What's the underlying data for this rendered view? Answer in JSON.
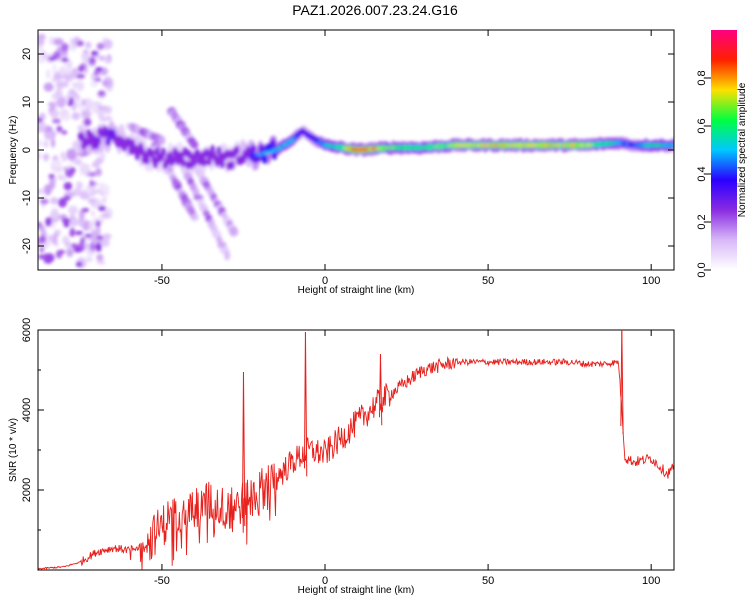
{
  "title": "PAZ1.2026.007.23.24.G16",
  "chart_data": [
    {
      "type": "heatmap",
      "title": "PAZ1.2026.007.23.24.G16",
      "xlabel": "Height of straight line (km)",
      "ylabel": "Frequency (Hz)",
      "xlim": [
        -88,
        107
      ],
      "ylim": [
        -25,
        25
      ],
      "xticks": [
        -50,
        0,
        50,
        100
      ],
      "yticks": [
        -20,
        -10,
        0,
        10,
        20
      ],
      "colorbar": {
        "label": "Normalized spectral amplitude",
        "range": [
          0,
          1
        ],
        "ticks": [
          0.0,
          0.2,
          0.4,
          0.6,
          0.8
        ],
        "tick_labels": [
          "0.0",
          "0.2",
          "0.4",
          "0.6",
          "0.8"
        ],
        "colors": [
          "#ffffff",
          "#d8b8f8",
          "#8a2be2",
          "#2a00ff",
          "#00c8ff",
          "#00ff40",
          "#ffe000",
          "#ff2000",
          "#ff0080"
        ]
      },
      "ridge": {
        "x": [
          -72,
          -65,
          -60,
          -55,
          -50,
          -45,
          -40,
          -35,
          -30,
          -25,
          -20,
          -15,
          -10,
          -7,
          -5,
          0,
          5,
          10,
          20,
          30,
          40,
          50,
          60,
          70,
          80,
          90,
          95,
          100,
          105
        ],
        "y": [
          2,
          3,
          1.5,
          -1,
          -2,
          -1,
          -2,
          -1,
          -2,
          -1,
          -1,
          0,
          2,
          4,
          3,
          1,
          0.5,
          0,
          0.5,
          0.5,
          1,
          1,
          1,
          1,
          1,
          1.5,
          1,
          1,
          1
        ],
        "amplitude": [
          0.3,
          0.35,
          0.25,
          0.2,
          0.2,
          0.15,
          0.2,
          0.2,
          0.2,
          0.3,
          0.45,
          0.5,
          0.5,
          0.3,
          0.35,
          0.5,
          0.6,
          0.9,
          0.65,
          0.6,
          0.7,
          0.75,
          0.75,
          0.75,
          0.7,
          0.5,
          0.4,
          0.6,
          0.5
        ]
      }
    },
    {
      "type": "line",
      "xlabel": "Height of straight line (km)",
      "ylabel": "SNR (10 * v/v)",
      "xlim": [
        -88,
        107
      ],
      "ylim": [
        0,
        6000
      ],
      "xticks": [
        -50,
        0,
        50,
        100
      ],
      "yticks": [
        2000,
        4000,
        6000
      ],
      "color": "#e8201c",
      "series": [
        {
          "name": "SNR",
          "x": [
            -88,
            -80,
            -75,
            -70,
            -65,
            -60,
            -55,
            -50,
            -45,
            -40,
            -35,
            -30,
            -25,
            -20,
            -15,
            -10,
            -5,
            0,
            5,
            10,
            15,
            20,
            25,
            30,
            35,
            40,
            45,
            50,
            55,
            60,
            65,
            70,
            75,
            80,
            85,
            90,
            92,
            95,
            100,
            105,
            107
          ],
          "y": [
            30,
            80,
            200,
            450,
            550,
            500,
            650,
            1100,
            1500,
            1600,
            1700,
            1500,
            1700,
            2000,
            2300,
            2700,
            3000,
            2900,
            3300,
            3700,
            4100,
            4400,
            4700,
            5000,
            5100,
            5200,
            5200,
            5200,
            5200,
            5200,
            5200,
            5200,
            5200,
            5150,
            5150,
            5200,
            2800,
            2700,
            2800,
            2400,
            2600
          ]
        }
      ],
      "spikes": [
        {
          "x": -25,
          "y": 4950
        },
        {
          "x": -6,
          "y": 5950
        },
        {
          "x": 17,
          "y": 5400
        },
        {
          "x": 91,
          "y": 6050
        }
      ]
    }
  ]
}
